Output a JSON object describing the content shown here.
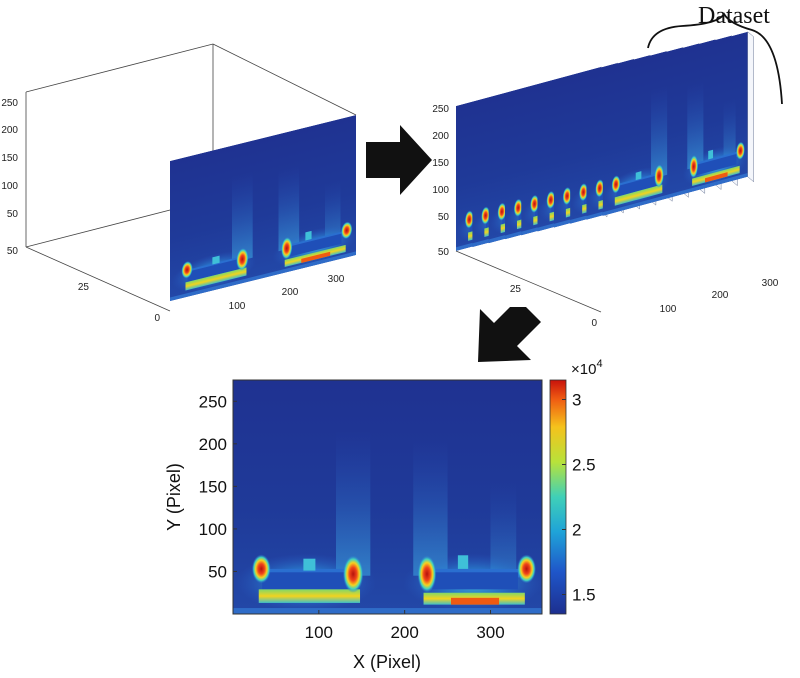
{
  "dataset_label": "Dataset",
  "panel_single": {
    "y_ticks": [
      "250",
      "200",
      "150",
      "100",
      "50"
    ],
    "depth_ticks": [
      "50",
      "25",
      "0"
    ],
    "x_ticks": [
      "100",
      "200",
      "300"
    ]
  },
  "panel_stack": {
    "y_ticks": [
      "250",
      "200",
      "150",
      "100",
      "50"
    ],
    "depth_ticks": [
      "50",
      "25",
      "0"
    ],
    "x_ticks": [
      "100",
      "200",
      "300"
    ],
    "slice_count": 10
  },
  "colorbar": {
    "multiplier": "×10",
    "exponent": "4",
    "ticks": [
      "3",
      "2.5",
      "2",
      "1.5"
    ]
  },
  "chart_data": {
    "type": "heatmap",
    "xlabel": "X (Pixel)",
    "ylabel": "Y (Pixel)",
    "x_ticks": [
      100,
      200,
      300
    ],
    "y_ticks": [
      50,
      100,
      150,
      200,
      250
    ],
    "xlim": [
      0,
      360
    ],
    "ylim": [
      0,
      275
    ],
    "color_range": [
      13500,
      31500
    ],
    "colorbar_ticks": [
      15000,
      20000,
      25000,
      30000
    ]
  }
}
